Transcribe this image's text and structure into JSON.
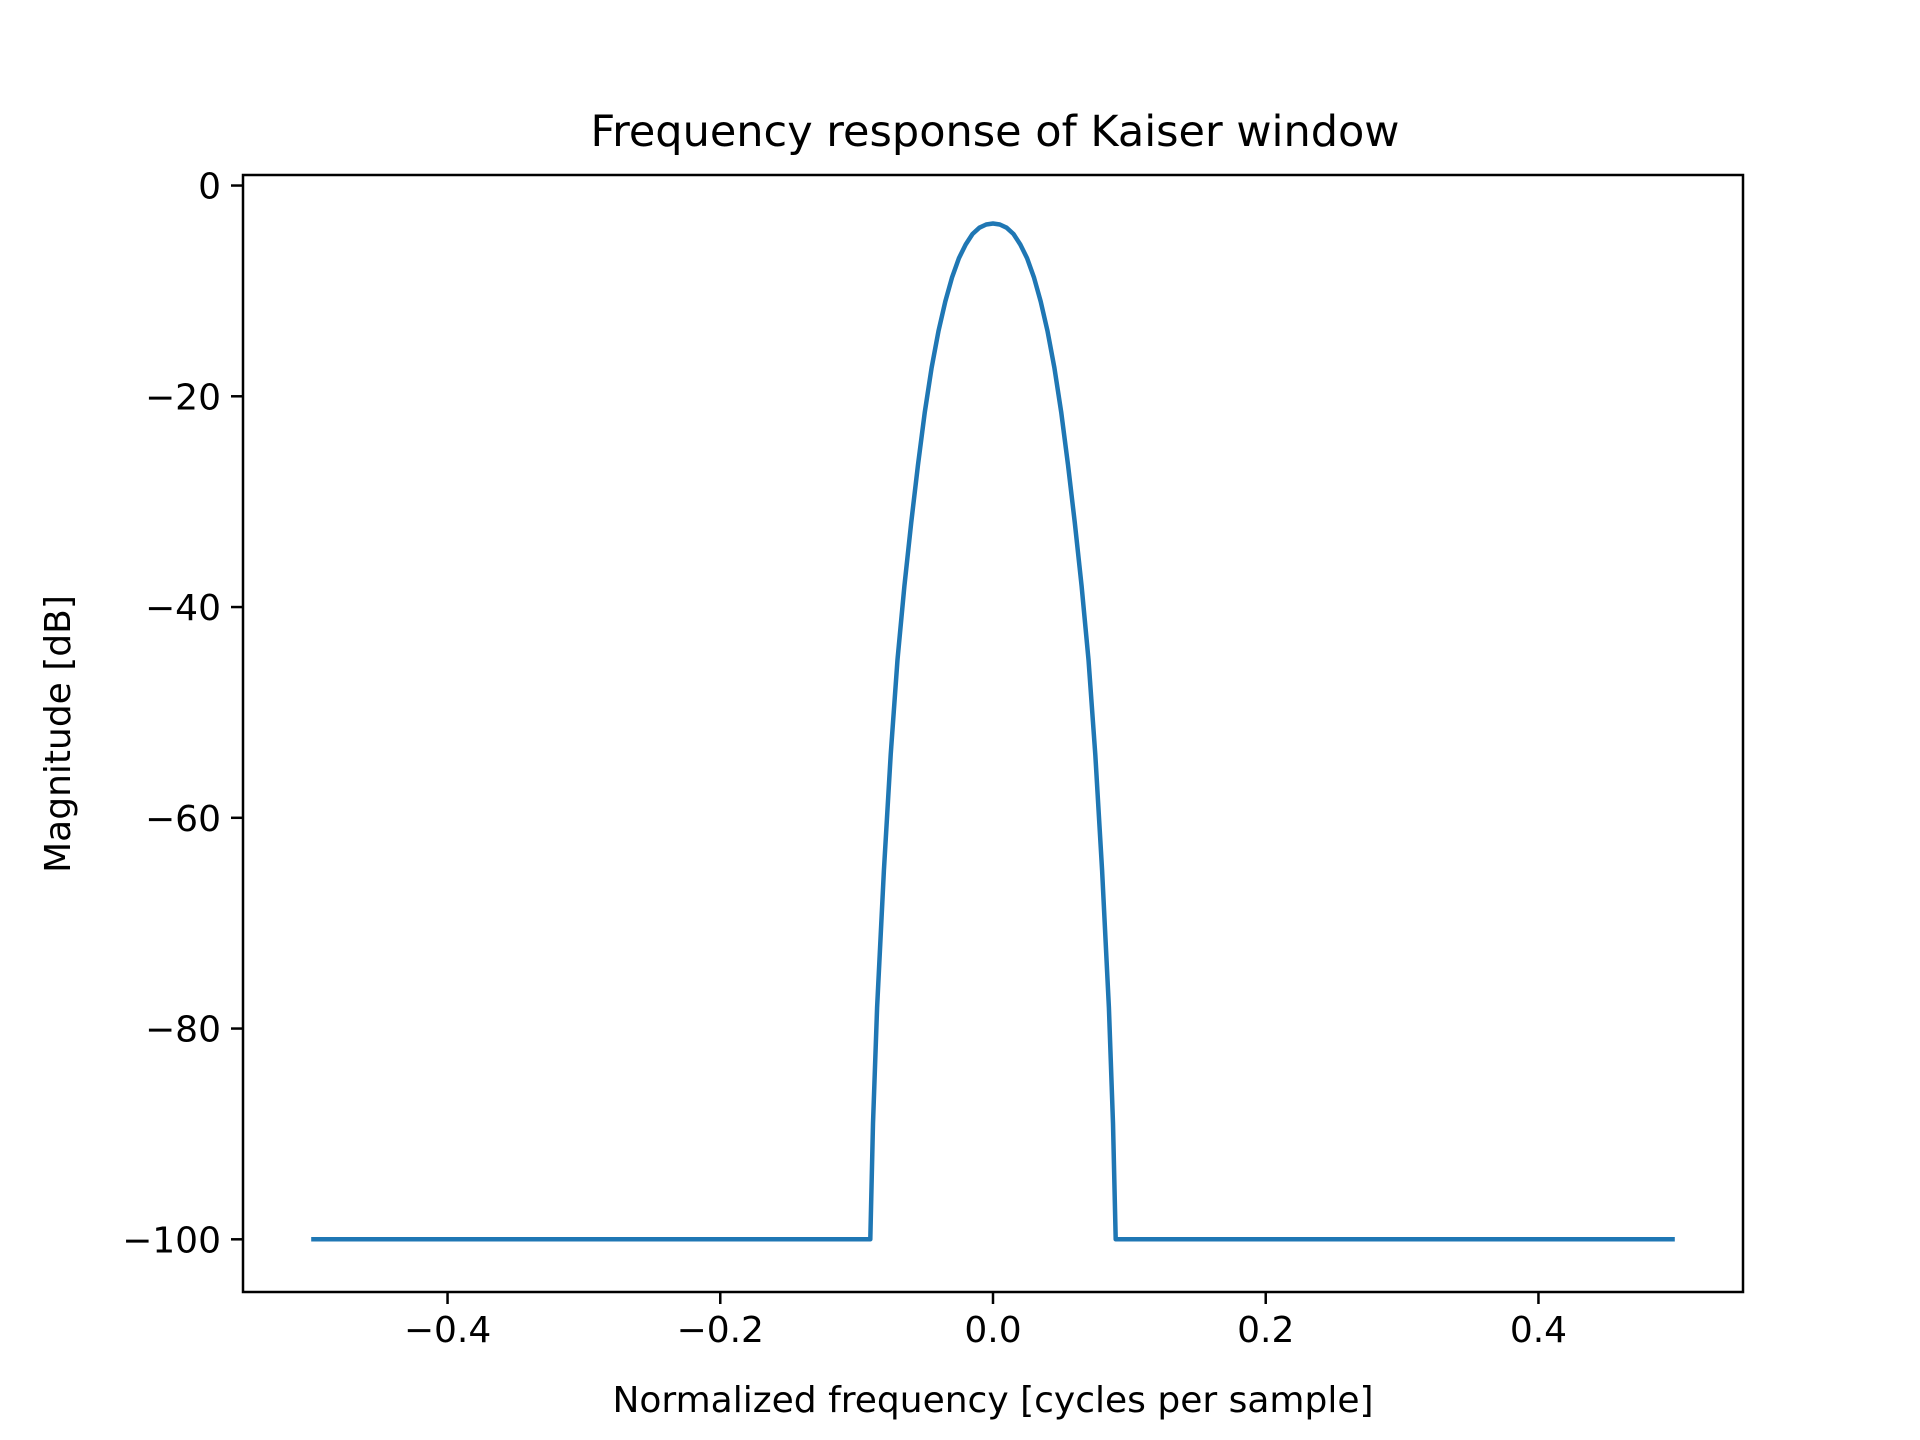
{
  "chart_data": {
    "type": "line",
    "title": "Frequency response of Kaiser window",
    "xlabel": "Normalized frequency [cycles per sample]",
    "ylabel": "Magnitude [dB]",
    "xlim": [
      -0.55,
      0.55
    ],
    "ylim": [
      -105,
      1
    ],
    "grid": false,
    "xticks": [
      -0.4,
      -0.2,
      0.0,
      0.2,
      0.4
    ],
    "xtick_labels": [
      "−0.4",
      "−0.2",
      "0.0",
      "0.2",
      "0.4"
    ],
    "yticks": [
      0,
      -20,
      -40,
      -60,
      -80,
      -100
    ],
    "ytick_labels": [
      "0",
      "−20",
      "−40",
      "−60",
      "−80",
      "−100"
    ],
    "colors": {
      "line": "#1f77b4",
      "axes": "#000000"
    },
    "series": [
      {
        "x": [
          -0.5,
          -0.09,
          -0.088,
          -0.085,
          -0.08,
          -0.075,
          -0.07,
          -0.065,
          -0.06,
          -0.055,
          -0.05,
          -0.045,
          -0.04,
          -0.035,
          -0.03,
          -0.025,
          -0.02,
          -0.015,
          -0.01,
          -0.005,
          0.0,
          0.005,
          0.01,
          0.015,
          0.02,
          0.025,
          0.03,
          0.035,
          0.04,
          0.045,
          0.05,
          0.055,
          0.06,
          0.065,
          0.07,
          0.075,
          0.08,
          0.085,
          0.088,
          0.09,
          0.5
        ],
        "values": [
          -100,
          -100,
          -89,
          -78,
          -65,
          -54,
          -45,
          -38,
          -32,
          -26.5,
          -21.5,
          -17.3,
          -13.8,
          -11.0,
          -8.7,
          -6.9,
          -5.6,
          -4.6,
          -4.0,
          -3.7,
          -3.6,
          -3.7,
          -4.0,
          -4.6,
          -5.6,
          -6.9,
          -8.7,
          -11.0,
          -13.8,
          -17.3,
          -21.5,
          -26.5,
          -32,
          -38,
          -45,
          -54,
          -65,
          -78,
          -89,
          -100,
          -100
        ]
      }
    ]
  }
}
